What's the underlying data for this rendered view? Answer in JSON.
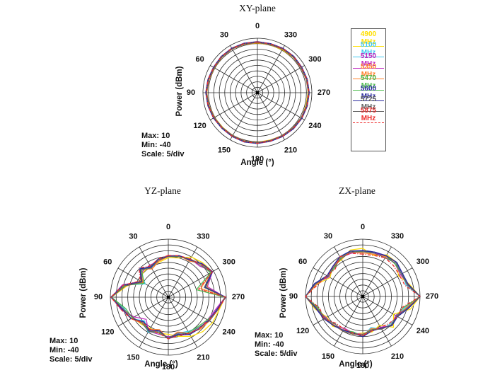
{
  "figure": {
    "background": "#ffffff",
    "plots": {
      "xy": {
        "title": "XY-plane"
      },
      "yz": {
        "title": "YZ-plane"
      },
      "zx": {
        "title": "ZX-plane"
      }
    },
    "axis": {
      "power_label": "Power  (dBm)",
      "angle_label": "Angle  (°)",
      "max_label": "Max: 10",
      "min_label": "Min: -40",
      "scale_label": "Scale: 5/div",
      "angle_ticks": [
        "0",
        "30",
        "60",
        "90",
        "120",
        "150",
        "180",
        "210",
        "240",
        "270",
        "300",
        "330"
      ],
      "rings": 10
    },
    "legend": {
      "entries": [
        {
          "label": "4900 MHz",
          "color": "#FFDF00",
          "dash": "",
          "width": 1.2
        },
        {
          "label": "5100 MHz",
          "color": "#3FC6EF",
          "dash": "",
          "width": 1.2
        },
        {
          "label": "5150 MHz",
          "color": "#C128C1",
          "dash": "",
          "width": 1.2
        },
        {
          "label": "5350 MHz",
          "color": "#FF7F27",
          "dash": "",
          "width": 1.2
        },
        {
          "label": "5470 MHz",
          "color": "#4CBB4C",
          "dash": "",
          "width": 1.2
        },
        {
          "label": "5600 MHz",
          "color": "#2B2B9E",
          "dash": "",
          "width": 1.5
        },
        {
          "label": "5725 MHz",
          "color": "#606060",
          "dash": "",
          "width": 1.0
        },
        {
          "label": "5875 MHz",
          "color": "#EE2C2C",
          "dash": "4.5 2 1.2 2",
          "width": 1.3
        }
      ]
    }
  },
  "chart_data": [
    {
      "type": "line",
      "subtype": "polar-radiation-pattern",
      "plane": "xy",
      "title": "XY-plane",
      "r_axis": {
        "min": -40,
        "max": 10,
        "scale_per_div": 5,
        "units": "dBm",
        "rings": 10
      },
      "zero_position": "top",
      "angle_direction": "counterclockwise",
      "angles_deg": [
        0,
        15,
        30,
        45,
        60,
        75,
        90,
        105,
        120,
        135,
        150,
        165,
        180,
        195,
        210,
        225,
        240,
        255,
        270,
        285,
        300,
        315,
        330,
        345
      ],
      "series": [
        {
          "name": "4900 MHz",
          "values": [
            5.5,
            6,
            6.5,
            6,
            5.5,
            6,
            6.5,
            6,
            5.5,
            5,
            5.5,
            6,
            5.5,
            5,
            5.5,
            6,
            6.5,
            6,
            6.5,
            7,
            6.5,
            6,
            5.5,
            5.5
          ]
        },
        {
          "name": "5100 MHz",
          "values": [
            6,
            6.2,
            6.5,
            6.2,
            5.8,
            6.2,
            6.8,
            6.2,
            5.8,
            5.4,
            5.6,
            6,
            5.8,
            5.4,
            5.6,
            6,
            6.4,
            6.6,
            7,
            6.6,
            6.2,
            6.4,
            6.2,
            5.8
          ]
        },
        {
          "name": "5150 MHz",
          "values": [
            6.5,
            6.5,
            7,
            6.5,
            6,
            6.5,
            7,
            6.5,
            6,
            5.8,
            6,
            6.3,
            6,
            5.8,
            6,
            6.3,
            6.6,
            6.8,
            7.2,
            6.8,
            6.5,
            6.6,
            6.5,
            6.2
          ]
        },
        {
          "name": "5350 MHz",
          "values": [
            5.8,
            6,
            6.3,
            6,
            5.6,
            6,
            6.5,
            6,
            5.6,
            5.2,
            5.4,
            5.8,
            5.6,
            5.2,
            5.4,
            5.8,
            6.2,
            6.4,
            6.8,
            6.4,
            6,
            6.2,
            6,
            5.6
          ]
        },
        {
          "name": "5470 MHz",
          "values": [
            6.2,
            6.4,
            6.7,
            6.4,
            6,
            6.4,
            6.9,
            6.4,
            6,
            5.6,
            5.8,
            6.2,
            6,
            5.6,
            5.8,
            6.2,
            6.6,
            6.8,
            7.2,
            6.8,
            6.4,
            6.6,
            6.4,
            6
          ]
        },
        {
          "name": "5600 MHz",
          "values": [
            6.8,
            7,
            7.2,
            7,
            6.6,
            7,
            7.4,
            7,
            6.6,
            6.2,
            6.4,
            6.8,
            6.6,
            6.2,
            6.4,
            6.8,
            7.2,
            7.4,
            7.6,
            7.4,
            7,
            7.2,
            7,
            6.6
          ]
        },
        {
          "name": "5725 MHz",
          "values": [
            6,
            6.1,
            6.4,
            6.1,
            5.7,
            6.1,
            6.6,
            6.1,
            5.7,
            5.3,
            5.5,
            5.9,
            5.7,
            5.3,
            5.5,
            5.9,
            6.3,
            6.5,
            6.9,
            6.5,
            6.1,
            6.3,
            6.1,
            5.7
          ]
        },
        {
          "name": "5875 MHz",
          "values": [
            6.6,
            6.8,
            7.1,
            6.8,
            6.4,
            6.8,
            7.3,
            6.8,
            6.4,
            6,
            6.2,
            6.6,
            6.4,
            6,
            6.2,
            6.6,
            7,
            7.2,
            7.5,
            7.2,
            6.8,
            7,
            6.8,
            6.4
          ]
        }
      ]
    },
    {
      "type": "line",
      "subtype": "polar-radiation-pattern",
      "plane": "yz",
      "title": "YZ-plane",
      "r_axis": {
        "min": -40,
        "max": 10,
        "scale_per_div": 5,
        "units": "dBm",
        "rings": 10
      },
      "zero_position": "top",
      "angle_direction": "counterclockwise",
      "angles_deg": [
        0,
        15,
        30,
        45,
        60,
        75,
        90,
        105,
        120,
        135,
        150,
        165,
        180,
        195,
        210,
        225,
        240,
        255,
        270,
        285,
        300,
        315,
        330,
        345
      ],
      "series": [
        {
          "name": "4900 MHz",
          "values": [
            -6,
            -9,
            -9,
            -9.5,
            -12,
            -3,
            9,
            1,
            -5,
            -7,
            -9,
            -8,
            -8,
            -5,
            -1,
            2,
            4,
            5,
            9,
            -6,
            4,
            2,
            0,
            -5
          ]
        },
        {
          "name": "5100 MHz",
          "values": [
            -5,
            -6,
            -11,
            -4.5,
            -17,
            0,
            9,
            -1,
            -3,
            -11,
            -5,
            -10,
            -4,
            -8,
            -6,
            -3,
            0,
            4,
            9,
            -7,
            2,
            1,
            -3,
            -3
          ]
        },
        {
          "name": "5150 MHz",
          "values": [
            -4,
            -8,
            -8,
            -8.5,
            -13,
            1,
            9,
            2,
            -6,
            -13,
            -6,
            -7,
            -6,
            -6,
            -3,
            -2,
            -1,
            2,
            9,
            -5,
            4,
            -2,
            -2,
            -4
          ]
        },
        {
          "name": "5350 MHz",
          "values": [
            -5,
            -8,
            -12,
            -5.5,
            -15,
            -2,
            9,
            0,
            -3,
            -8,
            -8,
            -11,
            -4,
            -9,
            -4,
            -1,
            1,
            3,
            9,
            -11,
            3,
            1,
            -4,
            -3
          ]
        },
        {
          "name": "5470 MHz",
          "values": [
            -4,
            -7,
            -9,
            -7.5,
            -16,
            -1,
            9,
            -2,
            -4,
            -9,
            -6,
            -8,
            -5,
            -6,
            -5,
            -4,
            -1,
            4,
            9,
            -15,
            2,
            0,
            -2,
            -4
          ]
        },
        {
          "name": "5600 MHz",
          "values": [
            -4.5,
            -6,
            -10,
            -5.5,
            -13,
            0,
            9.5,
            1,
            -3,
            -10,
            -7,
            -10,
            -4,
            -7,
            -3,
            -2,
            0,
            3,
            9.5,
            -7,
            4,
            1,
            -3,
            -3
          ]
        },
        {
          "name": "5725 MHz",
          "values": [
            -5,
            -7,
            -11,
            -6.5,
            -14,
            -2,
            9,
            0,
            -5,
            -8,
            -6,
            -9,
            -5,
            -8,
            -4,
            -3,
            1,
            4,
            9,
            -8,
            3,
            -1,
            -2,
            -4
          ]
        },
        {
          "name": "5875 MHz",
          "values": [
            -4,
            -6,
            -9,
            -4.5,
            -12,
            0,
            9.5,
            2,
            -3,
            -9,
            -8,
            -8,
            -4,
            -6,
            -4,
            -2,
            0,
            4,
            9.5,
            -13,
            4,
            0,
            -2,
            -3
          ]
        }
      ]
    },
    {
      "type": "line",
      "subtype": "polar-radiation-pattern",
      "plane": "zx",
      "title": "ZX-plane",
      "r_axis": {
        "min": -40,
        "max": 10,
        "scale_per_div": 5,
        "units": "dBm",
        "rings": 10
      },
      "zero_position": "top",
      "angle_direction": "counterclockwise",
      "angles_deg": [
        0,
        15,
        30,
        45,
        60,
        75,
        90,
        105,
        120,
        135,
        150,
        165,
        180,
        195,
        210,
        225,
        240,
        255,
        270,
        285,
        300,
        315,
        330,
        345
      ],
      "series": [
        {
          "name": "4900 MHz",
          "values": [
            2,
            2,
            -3,
            -3,
            -7,
            1.5,
            10,
            3,
            -4,
            -3,
            -8,
            -6,
            -8,
            -8,
            -11,
            -2,
            -9,
            3,
            10,
            2,
            -4,
            2,
            2,
            -3
          ]
        },
        {
          "name": "5100 MHz",
          "values": [
            -1,
            1,
            0,
            -5,
            -4,
            2.5,
            10,
            0,
            -1,
            -6,
            -5,
            -8,
            -5,
            -12,
            -7,
            -6,
            -5,
            -2,
            10,
            -1,
            0,
            1,
            -1,
            0
          ]
        },
        {
          "name": "5150 MHz",
          "values": [
            0,
            -1,
            -1,
            -3,
            -6,
            3.5,
            10,
            2,
            -3,
            -4,
            -8,
            -7,
            -7,
            -9,
            -9,
            -4,
            -7,
            0,
            10,
            1,
            -2,
            0,
            1,
            -1
          ]
        },
        {
          "name": "5350 MHz",
          "values": [
            -2,
            0,
            0,
            -4,
            -4,
            1.5,
            10,
            1,
            -1,
            -5,
            -5,
            -6,
            -6,
            -11,
            -7,
            -5,
            -5,
            -1,
            10,
            0,
            0,
            2,
            0,
            -2
          ]
        },
        {
          "name": "5470 MHz",
          "values": [
            -1,
            1,
            -1,
            -5,
            -5,
            3.5,
            10,
            0,
            -2,
            -4,
            -6,
            -8,
            -5,
            -10,
            -8,
            -4,
            -6,
            -3,
            10,
            1,
            -1,
            0,
            1,
            0
          ]
        },
        {
          "name": "5600 MHz",
          "values": [
            0,
            1,
            0,
            -3,
            -4,
            3.5,
            10,
            2,
            -1,
            -4,
            -6,
            -7,
            -5,
            -9,
            -8,
            -4,
            -5,
            1,
            10,
            1,
            0,
            2,
            1,
            0
          ]
        },
        {
          "name": "5725 MHz",
          "values": [
            -1,
            0,
            -2,
            -4,
            -5,
            2.5,
            10,
            1,
            -2,
            -6,
            -5,
            -6,
            -7,
            -10,
            -7,
            -5,
            -6,
            0,
            10,
            0,
            -1,
            1,
            -1,
            -1
          ]
        },
        {
          "name": "5875 MHz",
          "values": [
            -3,
            -1,
            0,
            -6,
            -4,
            0.5,
            10,
            -1,
            -1,
            -7,
            -7,
            -7,
            -6,
            -9,
            -9,
            -7,
            -5,
            -4,
            10,
            -2,
            -3,
            -2,
            -1,
            -3
          ]
        }
      ]
    }
  ]
}
